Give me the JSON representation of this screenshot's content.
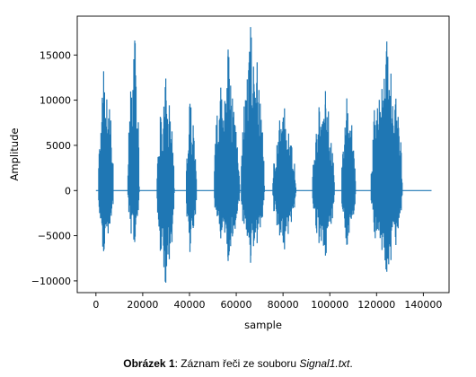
{
  "chart_data": {
    "type": "line",
    "xlabel": "sample",
    "ylabel": "Amplitude",
    "xlim": [
      -8000,
      151000
    ],
    "ylim": [
      -11300,
      19300
    ],
    "xticks": [
      0,
      20000,
      40000,
      60000,
      80000,
      100000,
      120000,
      140000
    ],
    "yticks": [
      -10000,
      -5000,
      0,
      5000,
      10000,
      15000
    ],
    "grid": false,
    "legend": "none",
    "color": "#1f77b4",
    "series": [
      {
        "x_range": [
          0,
          143500
        ],
        "segments": [
          {
            "start": 1000,
            "end": 7500,
            "max": 13200,
            "min": -6700
          },
          {
            "start": 13500,
            "end": 18500,
            "max": 16600,
            "min": -5700
          },
          {
            "start": 26000,
            "end": 33500,
            "max": 12400,
            "min": -10200
          },
          {
            "start": 38500,
            "end": 43000,
            "max": 9600,
            "min": -6800
          },
          {
            "start": 50500,
            "end": 61500,
            "max": 15600,
            "min": -7800
          },
          {
            "start": 62000,
            "end": 72000,
            "max": 18100,
            "min": -8000
          },
          {
            "start": 75500,
            "end": 85500,
            "max": 9100,
            "min": -6500
          },
          {
            "start": 92500,
            "end": 102000,
            "max": 11000,
            "min": -7200
          },
          {
            "start": 105000,
            "end": 111000,
            "max": 10200,
            "min": -6000
          },
          {
            "start": 117500,
            "end": 131000,
            "max": 16500,
            "min": -9000
          }
        ]
      }
    ]
  },
  "caption": {
    "label": "Obrázek 1",
    "text_before": ": Záznam řeči ze souboru ",
    "filename": "Signal1.txt",
    "text_after": "."
  }
}
